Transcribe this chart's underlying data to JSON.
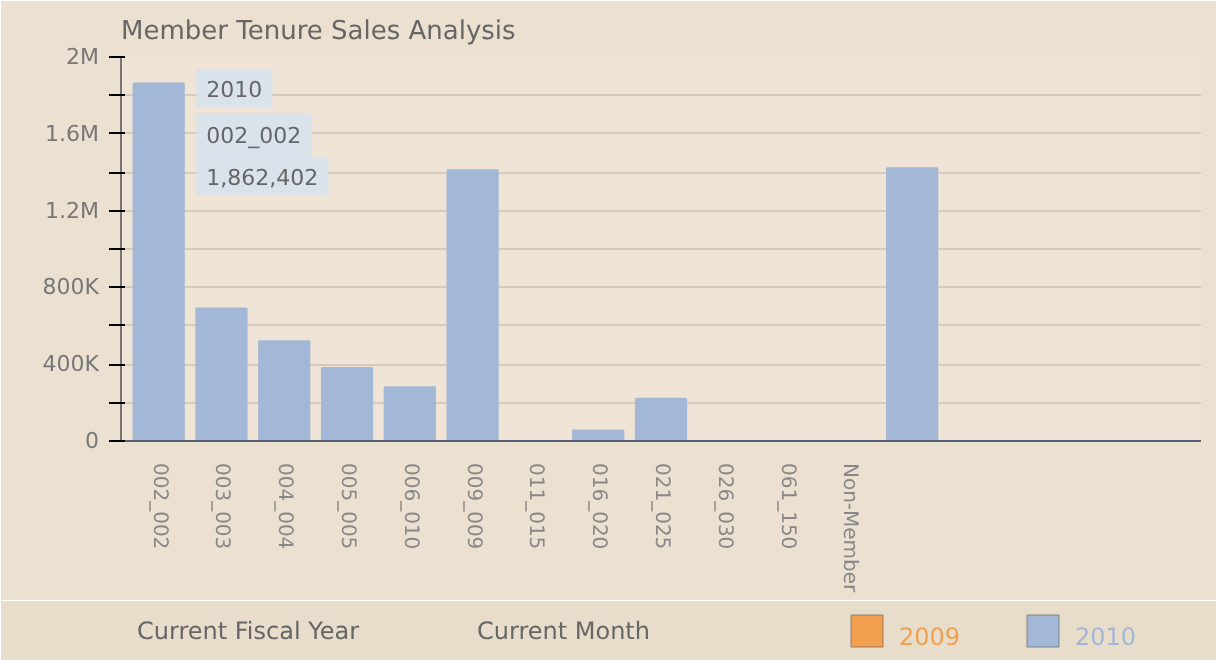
{
  "chart_data": {
    "type": "bar",
    "title": "Member Tenure Sales Analysis",
    "categories": [
      "002_002",
      "003_003",
      "004_004",
      "005_005",
      "006_010",
      "009_009",
      "011_015",
      "016_020",
      "021_025",
      "026_030",
      "061_150",
      "Non-Member",
      null
    ],
    "series": [
      {
        "name": "2009",
        "color": "#f2a04f",
        "values": [
          null,
          null,
          null,
          null,
          null,
          null,
          null,
          null,
          null,
          null,
          null,
          null,
          null
        ]
      },
      {
        "name": "2010",
        "color": "#a3b8d6",
        "values": [
          1862402,
          690000,
          520000,
          380000,
          280000,
          1410000,
          0,
          55000,
          220000,
          0,
          0,
          0,
          1420000
        ]
      }
    ],
    "ylim": [
      0,
      2000000
    ],
    "yticks": [
      0,
      {
        "value": 200000,
        "label": null
      },
      {
        "value": 400000,
        "label": "400K"
      },
      {
        "value": 600000,
        "label": null
      },
      {
        "value": 800000,
        "label": "800K"
      },
      {
        "value": 1000000,
        "label": null
      },
      {
        "value": 1200000,
        "label": "1.2M"
      },
      {
        "value": 1400000,
        "label": null
      },
      {
        "value": 1600000,
        "label": "1.6M"
      },
      {
        "value": 1800000,
        "label": null
      },
      {
        "value": 2000000,
        "label": "2M"
      }
    ],
    "grid": "y",
    "legend": "bottom",
    "annotations": [
      "2010",
      "002_002",
      "1,862,402",
      "Current Fiscal Year",
      "Current Month"
    ]
  }
}
